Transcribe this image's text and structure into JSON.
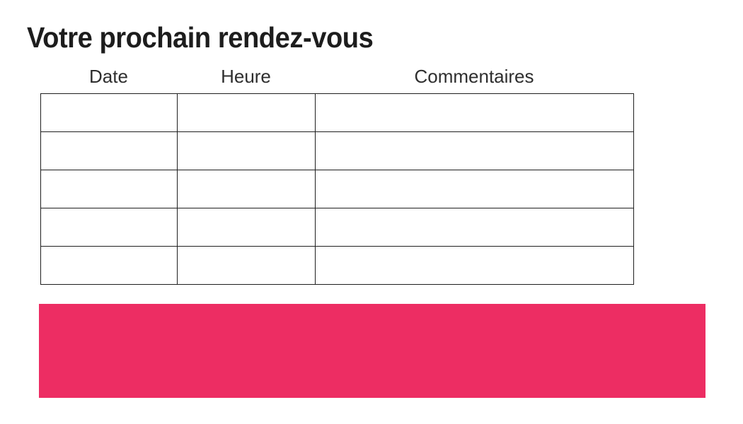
{
  "title": "Votre prochain rendez-vous",
  "table": {
    "headers": [
      "Date",
      "Heure",
      "Commentaires"
    ],
    "rows": [
      [
        "",
        "",
        ""
      ],
      [
        "",
        "",
        ""
      ],
      [
        "",
        "",
        ""
      ],
      [
        "",
        "",
        ""
      ],
      [
        "",
        "",
        ""
      ]
    ]
  },
  "banner": {
    "text": "",
    "color": "#ED2D63"
  }
}
